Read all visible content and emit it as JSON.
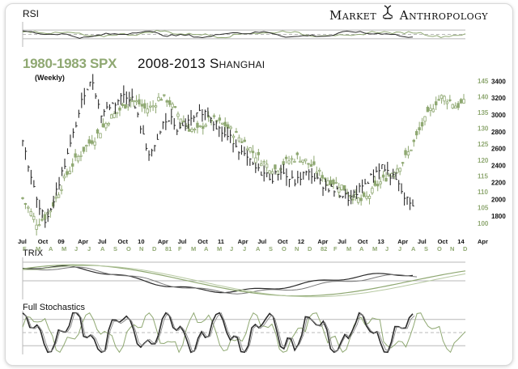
{
  "brand": {
    "left": "Market",
    "right": "Anthropology",
    "symbol": "DNA-helix-icon"
  },
  "panels": {
    "rsi_label": "RSI",
    "trix_label": "TRIX",
    "stoch_label": "Full Stochastics"
  },
  "colors": {
    "spx": "#8fa872",
    "shanghai": "#2b2b2b",
    "grid": "#b8b8b8"
  },
  "chart_data": {
    "type": "candlestick-line-overlay",
    "title_spx": "1980-1983 SPX",
    "title_shanghai": "2008-2013 Shanghai",
    "subtitle": "(Weekly)",
    "x_ticks_shanghai": [
      "Jul",
      "Oct",
      "09",
      "Apr",
      "Jul",
      "Oct",
      "10",
      "Apr",
      "Jul",
      "Oct",
      "11",
      "Apr",
      "Jul",
      "Oct",
      "12",
      "Apr",
      "Jul",
      "Oct",
      "13",
      "Apr",
      "Jul",
      "Oct",
      "14",
      "Apr"
    ],
    "x_ticks_spx": [
      "F",
      "M",
      "A",
      "M",
      "J",
      "J",
      "A",
      "S",
      "O",
      "N",
      "D",
      "81",
      "F",
      "M",
      "A",
      "M",
      "J",
      "J",
      "A",
      "S",
      "O",
      "N",
      "D",
      "82",
      "F",
      "M",
      "A",
      "M",
      "J",
      "J",
      "A",
      "S",
      "O",
      "N",
      "D"
    ],
    "y_ticks_spx": [
      145,
      140,
      135,
      130,
      125,
      120,
      115,
      110,
      105,
      100
    ],
    "y_ticks_shanghai": [
      3400,
      3200,
      3000,
      2800,
      2600,
      2400,
      2200,
      2000,
      1800
    ],
    "y_range_spx": [
      97,
      147
    ],
    "y_range_shanghai": [
      1600,
      3480
    ],
    "series": [
      {
        "name": "1980-1983 SPX",
        "values": [
          108,
          104,
          100,
          102,
          105,
          110,
          115,
          119,
          122,
          125,
          127,
          130,
          133,
          135,
          137,
          139,
          138,
          136,
          137,
          140,
          139,
          136,
          133,
          130,
          129,
          131,
          133,
          132,
          131,
          129,
          127,
          125,
          122,
          120,
          118,
          117,
          119,
          120,
          121,
          120,
          118,
          116,
          114,
          113,
          112,
          110,
          108,
          107,
          109,
          112,
          114,
          116,
          118,
          121,
          125,
          130,
          134,
          138,
          140,
          139,
          137,
          138
        ]
      },
      {
        "name": "2008-2013 Shanghai",
        "values": [
          2700,
          2300,
          1900,
          1750,
          2000,
          2300,
          2600,
          2950,
          3300,
          3400,
          3000,
          3100,
          3150,
          3250,
          3200,
          2900,
          2550,
          2600,
          2900,
          2950,
          2800,
          2900,
          2950,
          3050,
          3000,
          2850,
          2750,
          2700,
          2550,
          2450,
          2350,
          2300,
          2250,
          2350,
          2250,
          2200,
          2300,
          2300,
          2200,
          2150,
          2100,
          2050,
          2000,
          2100,
          2200,
          2300,
          2400,
          2300,
          2200,
          2000,
          1950
        ]
      }
    ],
    "rsi": {
      "ylim": [
        0,
        100
      ],
      "levels": [
        70,
        50,
        30
      ]
    },
    "trix": {
      "levels": [
        0
      ]
    },
    "stochastics": {
      "ylim": [
        0,
        100
      ],
      "levels": [
        80,
        50,
        20
      ]
    }
  }
}
